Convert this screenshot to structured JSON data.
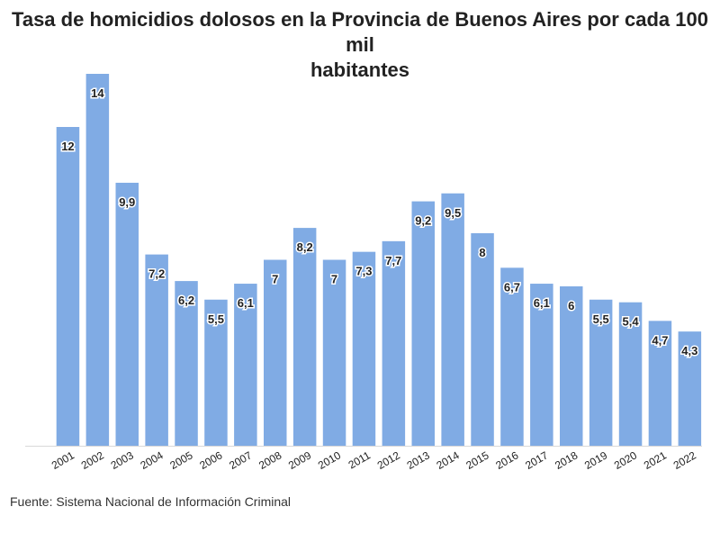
{
  "title_line1": "Tasa de homicidios dolosos en la Provincia de Buenos Aires por cada 100 mil",
  "title_line2": "habitantes",
  "source": "Fuente: Sistema Nacional de Información Criminal",
  "colors": {
    "bar": "#80abe4",
    "text": "#222222",
    "baseline": "#d8d8d8"
  },
  "chart_data": {
    "type": "bar",
    "title": "Tasa de homicidios dolosos en la Provincia de Buenos Aires por cada 100 mil habitantes",
    "xlabel": "",
    "ylabel": "",
    "ylim": [
      0,
      14
    ],
    "grid": false,
    "categories": [
      "2001",
      "2002",
      "2003",
      "2004",
      "2005",
      "2006",
      "2007",
      "2008",
      "2009",
      "2010",
      "2011",
      "2012",
      "2013",
      "2014",
      "2015",
      "2016",
      "2017",
      "2018",
      "2019",
      "2020",
      "2021",
      "2022"
    ],
    "values": [
      12,
      14,
      9.9,
      7.2,
      6.2,
      5.5,
      6.1,
      7,
      8.2,
      7,
      7.3,
      7.7,
      9.2,
      9.5,
      8,
      6.7,
      6.1,
      6,
      5.5,
      5.4,
      4.7,
      4.3
    ],
    "labels": [
      "12",
      "14",
      "9,9",
      "7,2",
      "6,2",
      "5,5",
      "6,1",
      "7",
      "8,2",
      "7",
      "7,3",
      "7,7",
      "9,2",
      "9,5",
      "8",
      "6,7",
      "6,1",
      "6",
      "5,5",
      "5,4",
      "4,7",
      "4,3"
    ]
  }
}
